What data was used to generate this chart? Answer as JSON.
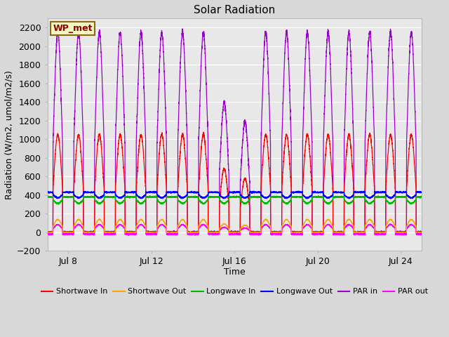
{
  "title": "Solar Radiation",
  "xlabel": "Time",
  "ylabel": "Radiation (W/m2, umol/m2/s)",
  "ylim": [
    -200,
    2300
  ],
  "yticks": [
    -200,
    0,
    200,
    400,
    600,
    800,
    1000,
    1200,
    1400,
    1600,
    1800,
    2000,
    2200
  ],
  "xtick_labels": [
    "Jul 8",
    "Jul 12",
    "Jul 16",
    "Jul 20",
    "Jul 24"
  ],
  "xtick_positions": [
    1,
    5,
    9,
    13,
    17
  ],
  "station_label": "WP_met",
  "fig_bg_color": "#d8d8d8",
  "plot_bg_color": "#e8e8e8",
  "grid_color": "#ffffff",
  "series": {
    "shortwave_in": {
      "color": "#ff0000",
      "label": "Shortwave In",
      "peak": 1050,
      "base": 0
    },
    "shortwave_out": {
      "color": "#ffa500",
      "label": "Shortwave Out",
      "peak": 150,
      "base": 0
    },
    "longwave_in": {
      "color": "#00bb00",
      "label": "Longwave In",
      "day_low": 310,
      "night_high": 380
    },
    "longwave_out": {
      "color": "#0000ff",
      "label": "Longwave Out",
      "day_low": 370,
      "night_high": 430
    },
    "par_in": {
      "color": "#9900cc",
      "label": "PAR in",
      "peak": 2150,
      "base": 0
    },
    "par_out": {
      "color": "#ff00ff",
      "label": "PAR out",
      "peak": 110,
      "base": -20
    }
  },
  "n_days": 18,
  "samples_per_day": 288,
  "cloudy_days": {
    "8": 0.65,
    "9": 0.55
  }
}
